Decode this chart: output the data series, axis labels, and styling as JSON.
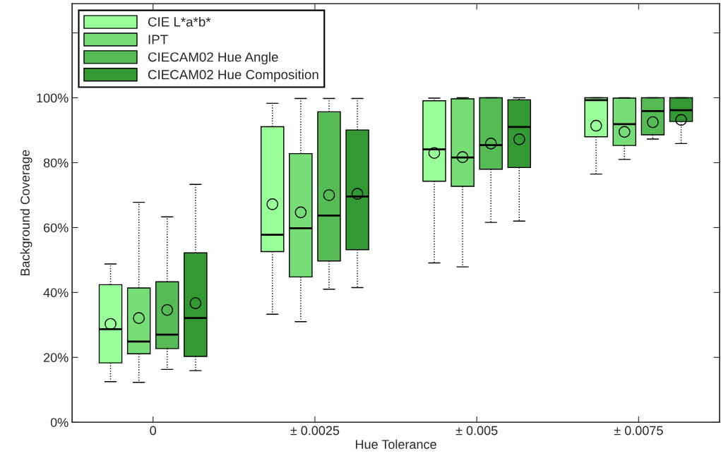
{
  "chart_data": {
    "type": "box",
    "xlabel": "Hue Tolerance",
    "ylabel": "Background Coverage",
    "categories": [
      "0",
      "± 0.0025",
      "± 0.005",
      "± 0.0075"
    ],
    "ylim": [
      0,
      129
    ],
    "yticks": [
      {
        "value": 0,
        "label": "0%"
      },
      {
        "value": 20,
        "label": "20%"
      },
      {
        "value": 40,
        "label": "40%"
      },
      {
        "value": 60,
        "label": "60%"
      },
      {
        "value": 80,
        "label": "80%"
      },
      {
        "value": 100,
        "label": "100%"
      },
      {
        "value": 120,
        "label": null
      }
    ],
    "legend": "top left",
    "grid": false,
    "marker": "circle",
    "line_style": "dotted",
    "series": [
      {
        "name": "CIE L*a*b*",
        "color": "#99ff99",
        "boxes": [
          {
            "low": 12.5,
            "q1": 18.3,
            "median": 28.7,
            "q3": 42.4,
            "high": 48.8,
            "mean": 30.3
          },
          {
            "low": 33.3,
            "q1": 52.6,
            "median": 57.8,
            "q3": 91.1,
            "high": 98.3,
            "mean": 67.2
          },
          {
            "low": 49.1,
            "q1": 74.3,
            "median": 84.1,
            "q3": 99.1,
            "high": 99.9,
            "mean": 83.0
          },
          {
            "low": 76.5,
            "q1": 88.0,
            "median": 99.3,
            "q3": 100,
            "high": 100,
            "mean": 91.4
          }
        ]
      },
      {
        "name": "IPT",
        "color": "#77dd77",
        "boxes": [
          {
            "low": 12.3,
            "q1": 21.1,
            "median": 24.9,
            "q3": 41.4,
            "high": 67.8,
            "mean": 32.1
          },
          {
            "low": 31.0,
            "q1": 44.8,
            "median": 59.8,
            "q3": 82.8,
            "high": 99.8,
            "mean": 64.7
          },
          {
            "low": 47.9,
            "q1": 72.7,
            "median": 81.6,
            "q3": 99.7,
            "high": 100,
            "mean": 81.7
          },
          {
            "low": 81.0,
            "q1": 85.3,
            "median": 91.9,
            "q3": 99.9,
            "high": 100,
            "mean": 89.5
          }
        ]
      },
      {
        "name": "CIECAM02 Hue Angle",
        "color": "#55bb55",
        "boxes": [
          {
            "low": 16.3,
            "q1": 22.7,
            "median": 27.0,
            "q3": 43.3,
            "high": 63.3,
            "mean": 34.6
          },
          {
            "low": 41.0,
            "q1": 49.7,
            "median": 63.7,
            "q3": 95.7,
            "high": 99.8,
            "mean": 70.0
          },
          {
            "low": 61.6,
            "q1": 78.0,
            "median": 85.4,
            "q3": 100,
            "high": 100,
            "mean": 85.9
          },
          {
            "low": 87.3,
            "q1": 88.6,
            "median": 95.9,
            "q3": 100,
            "high": 100,
            "mean": 92.5
          }
        ]
      },
      {
        "name": "CIECAM02 Hue Composition",
        "color": "#339933",
        "boxes": [
          {
            "low": 15.9,
            "q1": 20.3,
            "median": 32.1,
            "q3": 52.2,
            "high": 73.3,
            "mean": 36.7
          },
          {
            "low": 41.5,
            "q1": 53.2,
            "median": 69.6,
            "q3": 90.1,
            "high": 99.8,
            "mean": 70.4
          },
          {
            "low": 62.0,
            "q1": 78.5,
            "median": 91.0,
            "q3": 99.4,
            "high": 100,
            "mean": 87.2
          },
          {
            "low": 85.9,
            "q1": 92.7,
            "median": 96.2,
            "q3": 100,
            "high": 100,
            "mean": 93.2
          }
        ]
      }
    ]
  }
}
